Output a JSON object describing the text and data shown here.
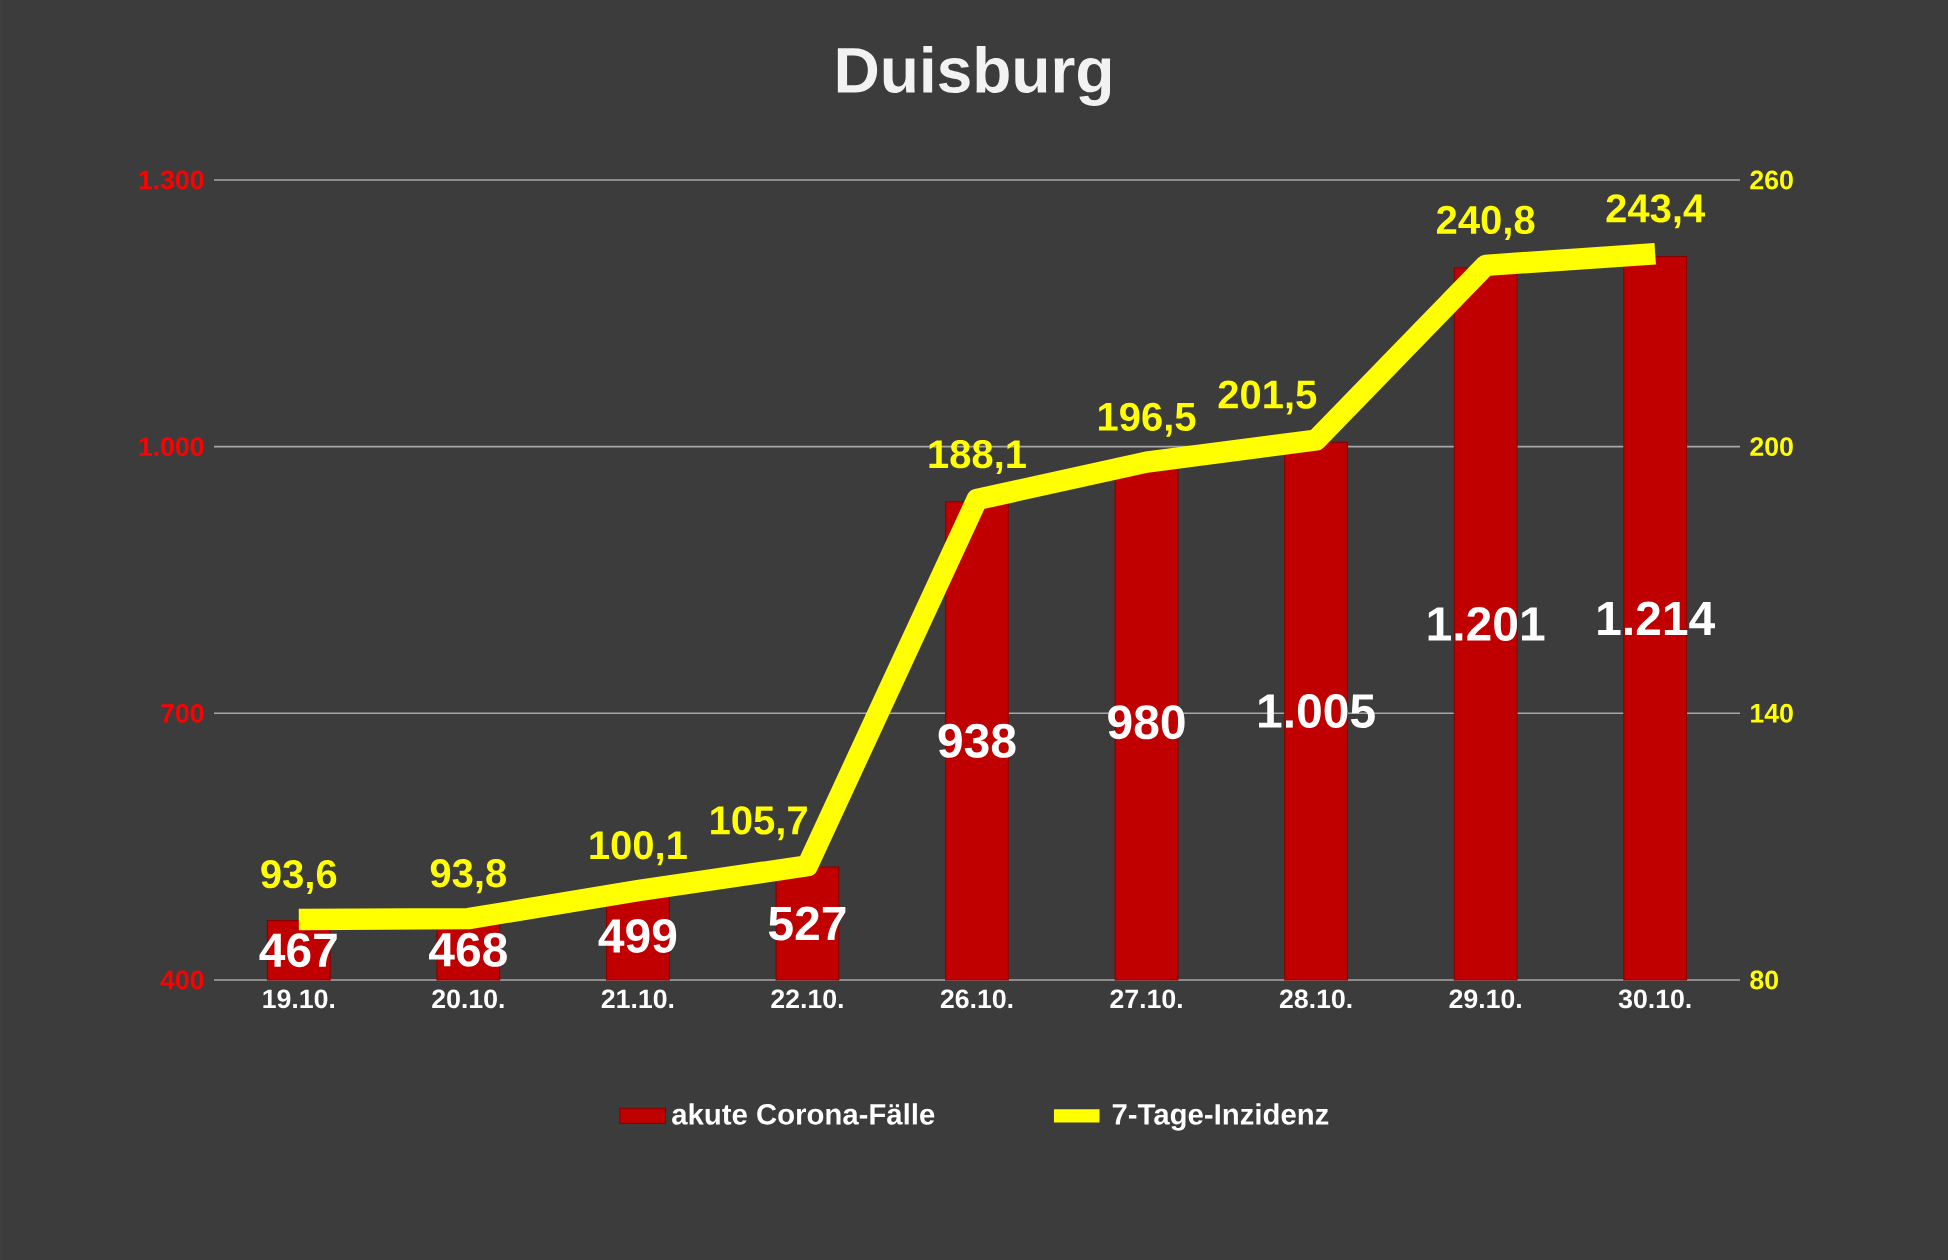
{
  "chart_data": {
    "type": "bar",
    "title": "Duisburg",
    "categories": [
      "19.10.",
      "20.10.",
      "21.10.",
      "22.10.",
      "26.10.",
      "27.10.",
      "28.10.",
      "29.10.",
      "30.10."
    ],
    "series": [
      {
        "name": "akute Corona-Fälle",
        "axis": "y",
        "color": "#c00000",
        "values": [
          467,
          468,
          499,
          527,
          938,
          980,
          1005,
          1201,
          1214
        ],
        "value_labels": [
          "467",
          "468",
          "499",
          "527",
          "938",
          "980",
          "1.005",
          "1.201",
          "1.214"
        ]
      },
      {
        "name": "7-Tage-Inzidenz",
        "type": "line",
        "axis": "y2",
        "color": "#ffff00",
        "line_style": "solid",
        "marker": "none",
        "values": [
          93.6,
          93.8,
          100.1,
          105.7,
          188.1,
          196.5,
          201.5,
          240.8,
          243.4
        ],
        "value_labels": [
          "93,6",
          "93,8",
          "100,1",
          "105,7",
          "188,1",
          "196,5",
          "201,5",
          "240,8",
          "243,4"
        ]
      }
    ],
    "ylim": [
      400,
      1300
    ],
    "yticks": [
      400,
      700,
      {
        "value": 1000,
        "label": "1.000"
      },
      {
        "value": 1300,
        "label": "1.300"
      }
    ],
    "y2lim": [
      80,
      260
    ],
    "y2ticks": [
      80,
      140,
      200,
      260
    ],
    "grid": "y",
    "legend": "bottom"
  }
}
